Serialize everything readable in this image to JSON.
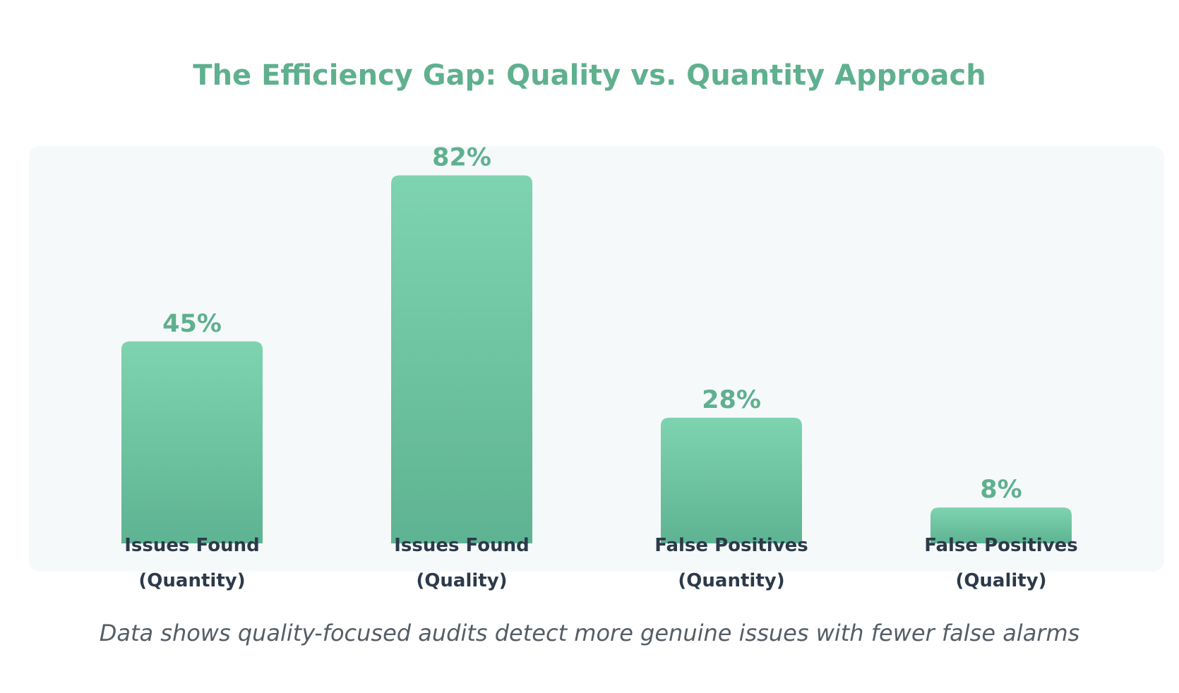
{
  "chart_data": {
    "type": "bar",
    "title": "The Efficiency Gap: Quality vs. Quantity Approach",
    "caption": "Data shows quality-focused audits detect more genuine issues with fewer false alarms",
    "categories": [
      [
        "Issues Found",
        "(Quantity)"
      ],
      [
        "Issues Found",
        "(Quality)"
      ],
      [
        "False Positives",
        "(Quantity)"
      ],
      [
        "False Positives",
        "(Quality)"
      ]
    ],
    "values": [
      45,
      82,
      28,
      8
    ],
    "value_labels": [
      "45%",
      "82%",
      "28%",
      "8%"
    ],
    "ylim": [
      0,
      100
    ],
    "grid": false,
    "legend": "none",
    "colors": {
      "bar_top": "#7ed3b0",
      "bar_bottom": "#5eb392",
      "panel": "#f5f9fa",
      "title": "#5fb08f",
      "value_label": "#5fb08f",
      "category_label": "#2c3a4a",
      "caption": "#555d66"
    }
  }
}
